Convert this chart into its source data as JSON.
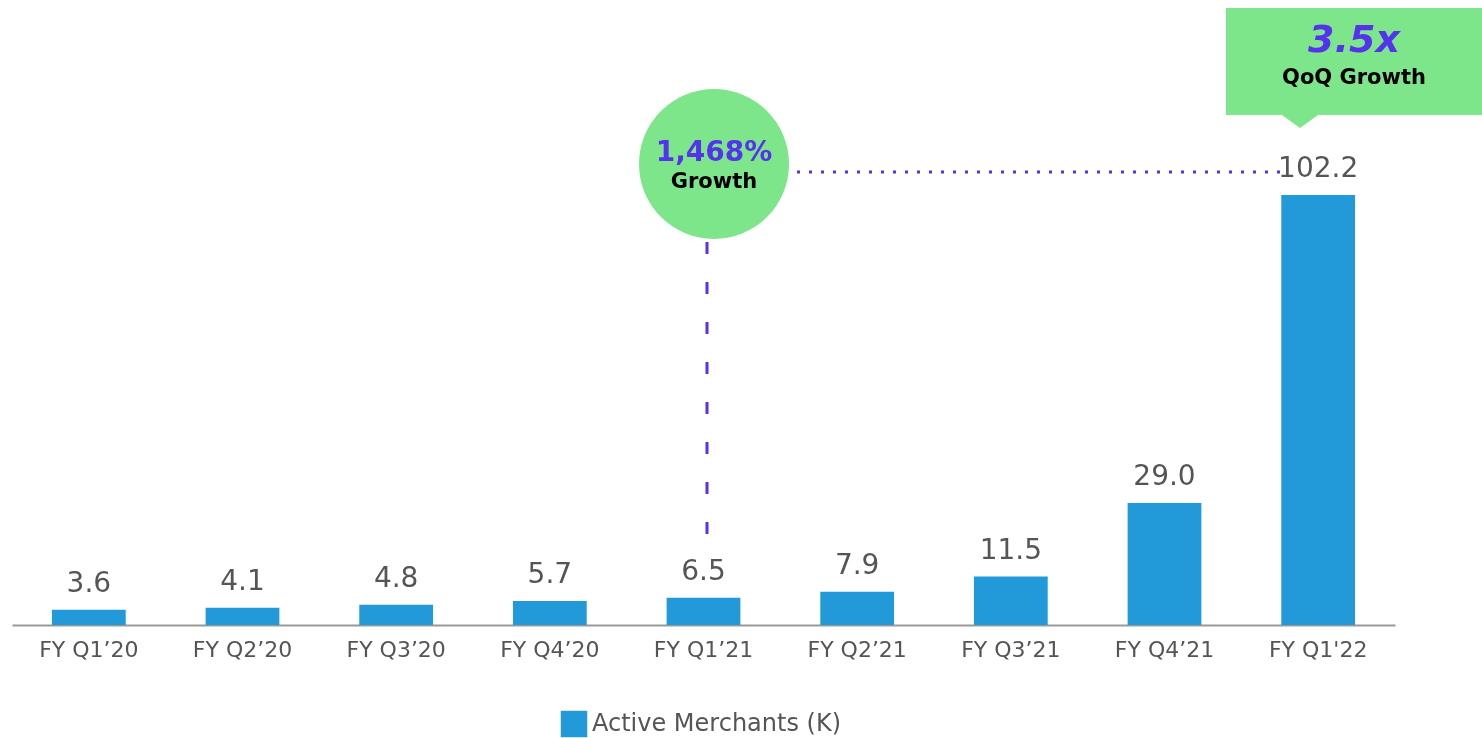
{
  "chart_data": {
    "type": "bar",
    "categories": [
      "FY Q1’20",
      "FY Q2’20",
      "FY Q3’20",
      "FY Q4’20",
      "FY Q1’21",
      "FY Q2’21",
      "FY Q3’21",
      "FY Q4’21",
      "FY Q1'22"
    ],
    "series": [
      {
        "name": "Active Merchants (K)",
        "color": "#2299d8",
        "values": [
          3.6,
          4.1,
          4.8,
          5.7,
          6.5,
          7.9,
          11.5,
          29.0,
          102.2
        ],
        "value_labels": [
          "3.6",
          "4.1",
          "4.8",
          "5.7",
          "6.5",
          "7.9",
          "11.5",
          "29.0",
          "102.2"
        ]
      }
    ],
    "legend": "bottom",
    "grid": false,
    "annotations": [
      "1,468% Growth",
      "3.5x QoQ Growth"
    ]
  }
}
